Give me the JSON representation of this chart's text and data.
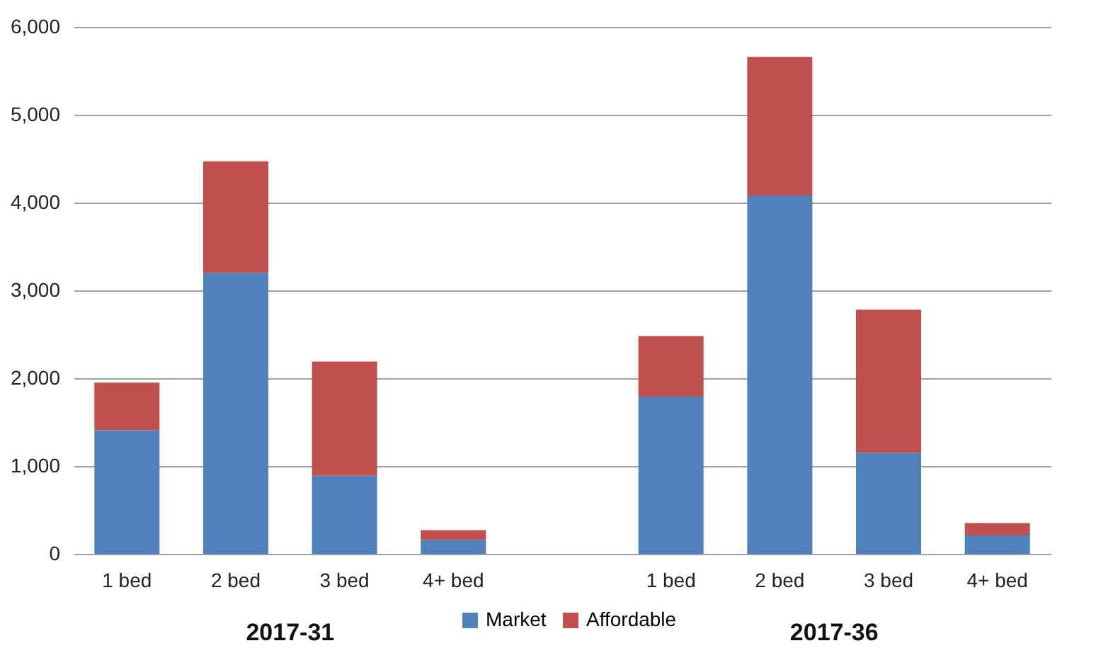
{
  "chart_data": {
    "type": "bar",
    "stacked": true,
    "categories": [
      "1 bed",
      "2 bed",
      "3 bed",
      "4+ bed",
      null,
      "1 bed",
      "2 bed",
      "3 bed",
      "4+ bed"
    ],
    "series": [
      {
        "name": "Market",
        "color": "#4f81bd",
        "values": [
          1410,
          3200,
          890,
          160,
          null,
          1790,
          4080,
          1150,
          210
        ]
      },
      {
        "name": "Affordable",
        "color": "#c0504d",
        "values": [
          540,
          1270,
          1300,
          110,
          null,
          690,
          1580,
          1630,
          140
        ]
      }
    ],
    "annotations": [
      {
        "text": "2017-31"
      },
      {
        "text": "2017-36"
      }
    ],
    "ylim": [
      0,
      6000
    ],
    "yticks": [
      0,
      {
        "value": 1000,
        "label": "1,000"
      },
      {
        "value": 2000,
        "label": "2,000"
      },
      {
        "value": 3000,
        "label": "3,000"
      },
      {
        "value": 4000,
        "label": "4,000"
      },
      {
        "value": 5000,
        "label": "5,000"
      },
      {
        "value": 6000,
        "label": "6,000"
      }
    ],
    "grid": "y",
    "legend": "bottom"
  }
}
